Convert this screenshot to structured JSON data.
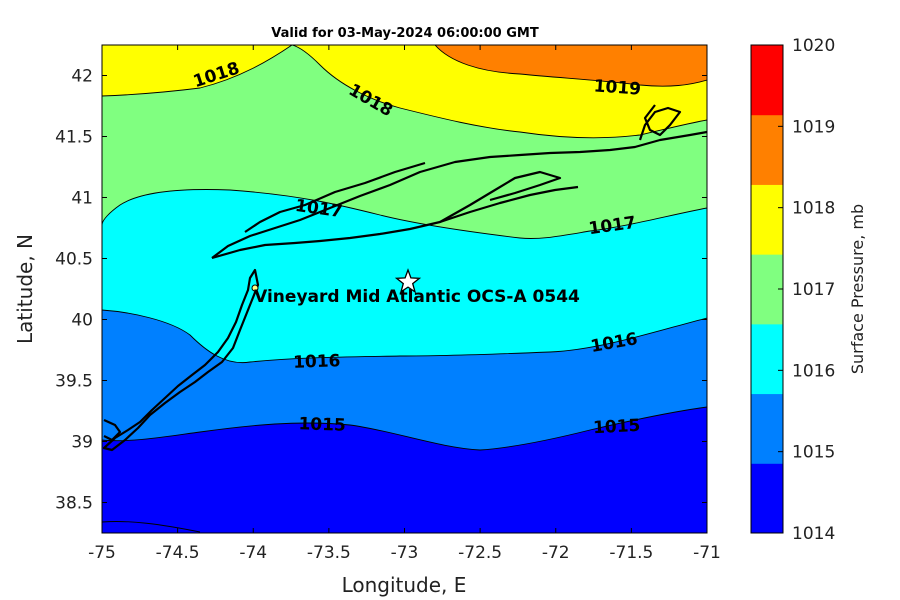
{
  "title": "Valid for 03-May-2024 06:00:00 GMT",
  "xlabel": "Longitude, E",
  "ylabel": "Latitude, N",
  "x_ticks": [
    "-75",
    "-74.5",
    "-74",
    "-73.5",
    "-73",
    "-72.5",
    "-72",
    "-71.5",
    "-71"
  ],
  "y_ticks": [
    "42",
    "41.5",
    "41",
    "40.5",
    "40",
    "39.5",
    "39",
    "38.5"
  ],
  "site_label": "Vineyard Mid Atlantic OCS-A 0544",
  "site_location": {
    "lon": -72.97,
    "lat": 40.32
  },
  "contour_labels": {
    "l1018_a": "1018",
    "l1018_b": "1018",
    "l1019": "1019",
    "l1017_a": "1017",
    "l1017_b": "1017",
    "l1016_a": "1016",
    "l1016_b": "1016",
    "l1015_a": "1015",
    "l1015_b": "1015"
  },
  "colorbar": {
    "label": "Surface Pressure, mb",
    "ticks": [
      "1020",
      "1019",
      "1018",
      "1017",
      "1016",
      "1015",
      "1014"
    ],
    "levels": [
      {
        "range": "1014-1015",
        "color": "#0000ff"
      },
      {
        "range": "1015-1016",
        "color": "#0080ff"
      },
      {
        "range": "1016-1017",
        "color": "#00ffff"
      },
      {
        "range": "1017-1018",
        "color": "#80ff80"
      },
      {
        "range": "1018-1019",
        "color": "#ffff00"
      },
      {
        "range": "1019-1020",
        "color": "#ff8000"
      },
      {
        "range": "1020+",
        "color": "#ff0000"
      }
    ]
  },
  "xlim": [
    -75,
    -71
  ],
  "ylim": [
    38.25,
    42.25
  ]
}
